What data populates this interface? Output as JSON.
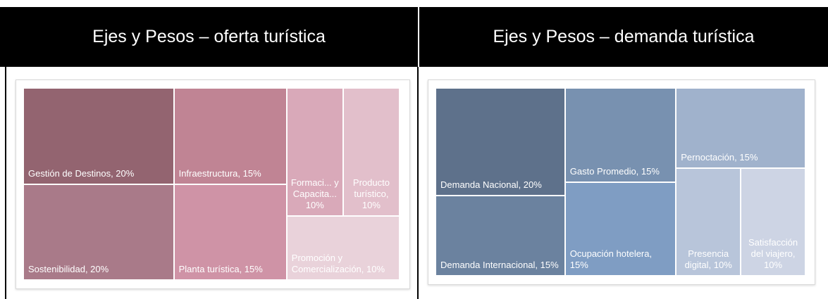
{
  "table": {
    "headers": [
      "Ejes y Pesos – oferta turística",
      "Ejes y Pesos – demanda turística"
    ]
  },
  "chart_data": [
    {
      "type": "treemap",
      "labels": [
        "Gestión de Destinos, 20%",
        "Sostenibilidad, 20%",
        "Infraestructura, 15%",
        "Planta turística, 15%",
        "Formaci... y Capacita... 10%",
        "Producto turístico, 10%",
        "Promoción y Comercialización, 10%"
      ],
      "values": [
        20,
        20,
        15,
        15,
        10,
        10,
        10
      ],
      "colors": [
        "#936470",
        "#a97a89",
        "#c08494",
        "#cf93a6",
        "#d9a9b9",
        "#e2bfcb",
        "#e9d2da"
      ]
    },
    {
      "type": "treemap",
      "labels": [
        "Demanda Nacional, 20%",
        "Demanda Internacional, 15%",
        "Gasto Promedio, 15%",
        "Ocupación hotelera, 15%",
        "Pernoctación, 15%",
        "Presencia digital, 10%",
        "Satisfacción del viajero, 10%"
      ],
      "values": [
        20,
        15,
        15,
        15,
        15,
        10,
        10
      ],
      "colors": [
        "#5e718b",
        "#6b829f",
        "#7891b0",
        "#7f9dc3",
        "#a0b2cc",
        "#b8c5da",
        "#cdd4e4"
      ]
    }
  ]
}
